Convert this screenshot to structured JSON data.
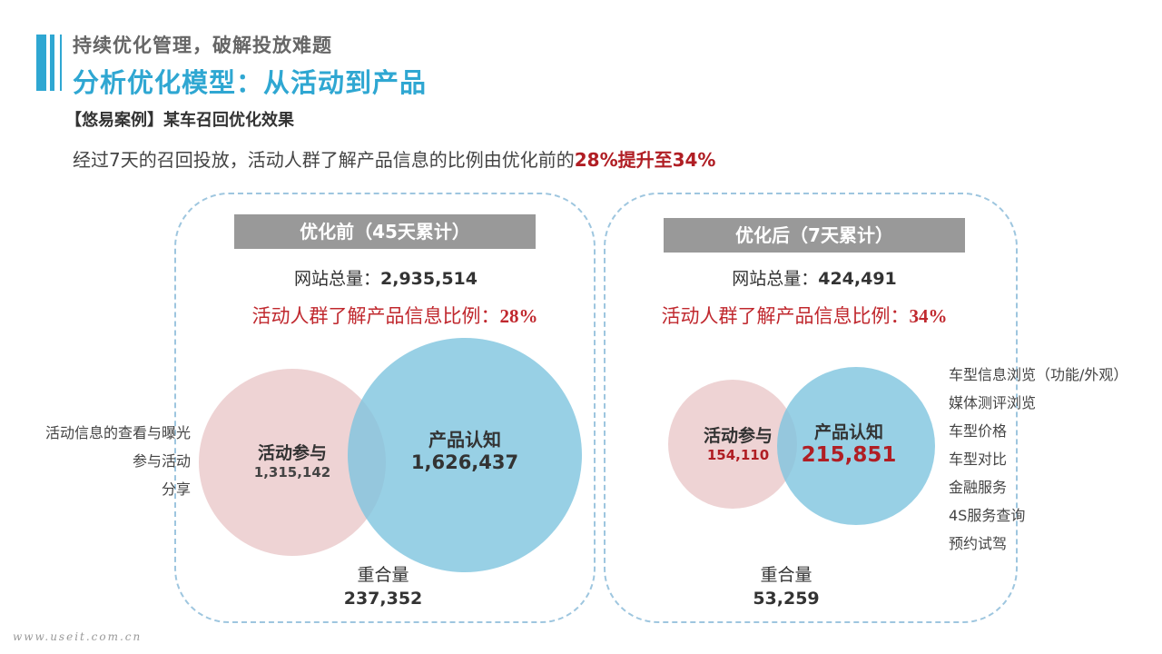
{
  "header": {
    "subtitle": "持续优化管理，破解投放难题",
    "title": "分析优化模型：从活动到产品"
  },
  "case_title": "【悠易案例】某车召回优化效果",
  "summary": {
    "prefix": "经过7天的召回投放，活动人群了解产品信息的比例由优化前的",
    "highlight": "28%提升至34%"
  },
  "before": {
    "header": "优化前（45天累计）",
    "site_label": "网站总量：",
    "site_value": "2,935,514",
    "ratio_label": "活动人群了解产品信息比例：",
    "ratio_value": "28%",
    "activity_label": "活动参与",
    "activity_value": "1,315,142",
    "product_label": "产品认知",
    "product_value": "1,626,437",
    "overlap_label": "重合量",
    "overlap_value": "237,352",
    "side_items": [
      "活动信息的查看与曝光",
      "参与活动",
      "分享"
    ]
  },
  "after": {
    "header": "优化后（7天累计）",
    "site_label": "网站总量：",
    "site_value": "424,491",
    "ratio_label": "活动人群了解产品信息比例：",
    "ratio_value": "34%",
    "activity_label": "活动参与",
    "activity_value": "154,110",
    "product_label": "产品认知",
    "product_value": "215,851",
    "overlap_label": "重合量",
    "overlap_value": "53,259",
    "side_items": [
      "车型信息浏览（功能/外观）",
      "媒体测评浏览",
      "车型价格",
      "车型对比",
      "金融服务",
      "4S服务查询",
      "预约试驾"
    ]
  },
  "colors": {
    "accent": "#2FA7D2",
    "highlight_red": "#B01E24",
    "activity_circle": "#E8C4C6",
    "product_circle": "#7EC4DE",
    "header_gray": "#999999"
  },
  "watermark": "www.useit.com.cn"
}
